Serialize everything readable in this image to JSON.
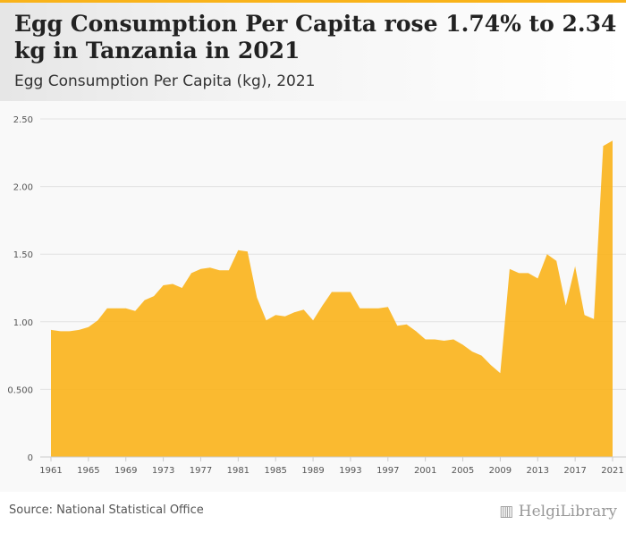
{
  "title": "Egg Consumption Per Capita rose 1.74% to 2.34 kg in Tanzania in 2021",
  "subtitle": "Egg Consumption Per Capita (kg), 2021",
  "source": "Source: National Statistical Office",
  "logo": "HelgiLibrary",
  "colors": {
    "area": "#f9b31a",
    "grid": "#e2e2e2"
  },
  "chart_data": {
    "type": "area",
    "title": "Egg Consumption Per Capita (kg), 2021",
    "xlabel": "",
    "ylabel": "",
    "ylim": [
      0,
      2.5
    ],
    "yticks": [
      {
        "v": 0,
        "label": "0"
      },
      {
        "v": 0.5,
        "label": "0.500"
      },
      {
        "v": 1,
        "label": "1.00"
      },
      {
        "v": 1.5,
        "label": "1.50"
      },
      {
        "v": 2,
        "label": "2.00"
      },
      {
        "v": 2.5,
        "label": "2.50"
      }
    ],
    "xticks": [
      1961,
      1965,
      1969,
      1973,
      1977,
      1981,
      1985,
      1989,
      1993,
      1997,
      2001,
      2005,
      2009,
      2013,
      2017,
      2021
    ],
    "x_start": 1961,
    "values": [
      0.94,
      0.93,
      0.93,
      0.94,
      0.96,
      1.01,
      1.1,
      1.1,
      1.1,
      1.08,
      1.16,
      1.19,
      1.27,
      1.28,
      1.25,
      1.36,
      1.39,
      1.4,
      1.38,
      1.38,
      1.53,
      1.52,
      1.18,
      1.01,
      1.05,
      1.04,
      1.07,
      1.09,
      1.01,
      1.12,
      1.22,
      1.22,
      1.22,
      1.1,
      1.1,
      1.1,
      1.11,
      0.97,
      0.98,
      0.93,
      0.87,
      0.87,
      0.86,
      0.87,
      0.83,
      0.78,
      0.75,
      0.68,
      0.62,
      1.39,
      1.36,
      1.36,
      1.32,
      1.5,
      1.45,
      1.12,
      1.41,
      1.05,
      1.02,
      2.3,
      2.34
    ]
  }
}
